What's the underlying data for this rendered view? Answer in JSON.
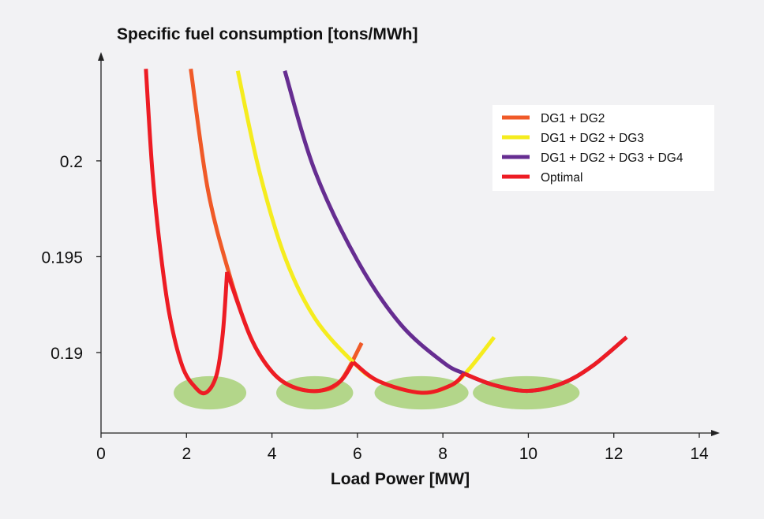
{
  "chart_data": {
    "type": "line",
    "title": "Specific fuel consumption [tons/MWh]",
    "xlabel": "Load Power [MW]",
    "ylabel": "",
    "xlim": [
      0,
      14
    ],
    "ylim": [
      0.1858,
      0.2051
    ],
    "x_ticks": [
      0,
      2,
      4,
      6,
      8,
      10,
      12,
      14
    ],
    "x_tick_labels": [
      "0",
      "2",
      "4",
      "6",
      "8",
      "10",
      "12",
      "14"
    ],
    "y_ticks": [
      0.19,
      0.195,
      0.2
    ],
    "y_tick_labels": [
      "0.19",
      "0.195",
      "0.2"
    ],
    "grid": false,
    "legend_position": "top-right",
    "series": [
      {
        "name": "DG1 + DG2",
        "color": "#f05a28",
        "segments": [
          [
            [
              2.1,
              0.2048
            ],
            [
              2.5,
              0.1985
            ],
            [
              3.0,
              0.1941
            ],
            [
              3.5,
              0.1908
            ],
            [
              4.0,
              0.189
            ],
            [
              4.5,
              0.1882
            ],
            [
              5.1,
              0.188
            ],
            [
              5.6,
              0.1885
            ],
            [
              6.1,
              0.1905
            ]
          ]
        ]
      },
      {
        "name": "DG1 + DG2 + DG3",
        "color": "#f5ec1e",
        "segments": [
          [
            [
              3.2,
              0.2047
            ],
            [
              3.7,
              0.1995
            ],
            [
              4.3,
              0.195
            ],
            [
              5.0,
              0.1918
            ],
            [
              5.9,
              0.1895
            ],
            [
              6.5,
              0.1885
            ],
            [
              7.5,
              0.1879
            ],
            [
              8.2,
              0.1883
            ],
            [
              8.6,
              0.1891
            ],
            [
              9.2,
              0.1908
            ]
          ]
        ]
      },
      {
        "name": "DG1 + DG2 + DG3 + DG4",
        "color": "#662d91",
        "segments": [
          [
            [
              4.3,
              0.2047
            ],
            [
              5.0,
              0.1995
            ],
            [
              6.0,
              0.1948
            ],
            [
              7.0,
              0.1915
            ],
            [
              8.0,
              0.1895
            ],
            [
              8.5,
              0.1889
            ],
            [
              9.2,
              0.1883
            ],
            [
              10.0,
              0.188
            ],
            [
              10.8,
              0.1884
            ],
            [
              11.5,
              0.1893
            ],
            [
              12.3,
              0.1908
            ]
          ]
        ]
      },
      {
        "name": "Optimal",
        "color": "#ed1c24",
        "segments": [
          [
            [
              1.05,
              0.2048
            ],
            [
              1.2,
              0.1995
            ],
            [
              1.38,
              0.1955
            ],
            [
              1.6,
              0.192
            ],
            [
              1.9,
              0.1893
            ],
            [
              2.2,
              0.1882
            ],
            [
              2.45,
              0.1879
            ],
            [
              2.7,
              0.1888
            ],
            [
              2.85,
              0.191
            ],
            [
              2.95,
              0.1942
            ]
          ],
          [
            [
              2.95,
              0.1942
            ],
            [
              3.5,
              0.1908
            ],
            [
              4.0,
              0.189
            ],
            [
              4.5,
              0.1882
            ],
            [
              5.1,
              0.188
            ],
            [
              5.6,
              0.1885
            ],
            [
              5.9,
              0.1895
            ]
          ],
          [
            [
              5.9,
              0.1895
            ],
            [
              6.5,
              0.1885
            ],
            [
              7.5,
              0.1879
            ],
            [
              8.2,
              0.1883
            ],
            [
              8.5,
              0.1889
            ]
          ],
          [
            [
              8.5,
              0.1889
            ],
            [
              9.2,
              0.1883
            ],
            [
              10.0,
              0.188
            ],
            [
              10.8,
              0.1884
            ],
            [
              11.5,
              0.1893
            ],
            [
              12.3,
              0.1908
            ]
          ]
        ]
      }
    ],
    "highlight_regions": {
      "color": "#b3d68a",
      "regions": [
        {
          "x": [
            1.7,
            3.4
          ],
          "y": [
            0.18703,
            0.18877
          ]
        },
        {
          "x": [
            4.1,
            5.9
          ],
          "y": [
            0.18703,
            0.18877
          ]
        },
        {
          "x": [
            6.4,
            8.6
          ],
          "y": [
            0.18703,
            0.18877
          ]
        },
        {
          "x": [
            8.7,
            11.2
          ],
          "y": [
            0.18703,
            0.18877
          ]
        }
      ]
    }
  }
}
